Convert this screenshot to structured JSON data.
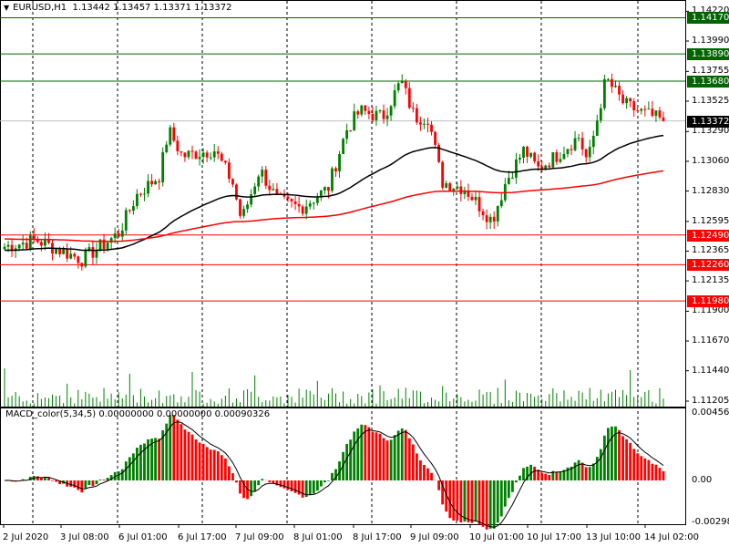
{
  "header": {
    "symbol": "EURUSD,H1",
    "ohlc": "1.13442 1.13457 1.13371 1.13372"
  },
  "macd": {
    "title": "MACD_color(5,34,5) 0.00000000 0.00000000 0.00090326",
    "max": "0.0045674",
    "zero": "0.00",
    "min": "-0.002988"
  },
  "price_axis": [
    "1.14220",
    "1.13990",
    "1.13755",
    "1.13525",
    "1.13290",
    "1.13060",
    "1.12830",
    "1.12595",
    "1.12365",
    "1.12135",
    "1.11900",
    "1.11670",
    "1.11440",
    "1.11205"
  ],
  "levels": [
    {
      "price": "1.14170",
      "color": "#006400"
    },
    {
      "price": "1.13890",
      "color": "#006400"
    },
    {
      "price": "1.13680",
      "color": "#006400"
    },
    {
      "price": "1.13372",
      "color": "#000000",
      "line": "#c0c0c0"
    },
    {
      "price": "1.12490",
      "color": "#ff0000"
    },
    {
      "price": "1.12260",
      "color": "#ff0000"
    },
    {
      "price": "1.11980",
      "color": "#ff0000"
    }
  ],
  "time_axis": [
    "2 Jul 2020",
    "3 Jul 08:00",
    "6 Jul 01:00",
    "6 Jul 17:00",
    "7 Jul 09:00",
    "8 Jul 01:00",
    "8 Jul 17:00",
    "9 Jul 09:00",
    "10 Jul 01:00",
    "10 Jul 17:00",
    "13 Jul 10:00",
    "14 Jul 02:00"
  ],
  "chart_data": {
    "type": "candlestick",
    "symbol": "EURUSD",
    "timeframe": "H1",
    "ylim": [
      1.11205,
      1.1422
    ],
    "close_path": [
      1.124,
      1.1245,
      1.123,
      1.125,
      1.128,
      1.1295,
      1.133,
      1.131,
      1.1315,
      1.129,
      1.126,
      1.13,
      1.1275,
      1.127,
      1.1285,
      1.133,
      1.1345,
      1.134,
      1.1368,
      1.134,
      1.134,
      1.129,
      1.1285,
      1.126,
      1.129,
      1.1315,
      1.13,
      1.131,
      1.1325,
      1.1305,
      1.137,
      1.135,
      1.1345,
      1.13372
    ],
    "colors": {
      "up": "#008000",
      "down": "#ff0000",
      "ma_fast": "#000000",
      "ma_slow": "#ff0000"
    }
  }
}
